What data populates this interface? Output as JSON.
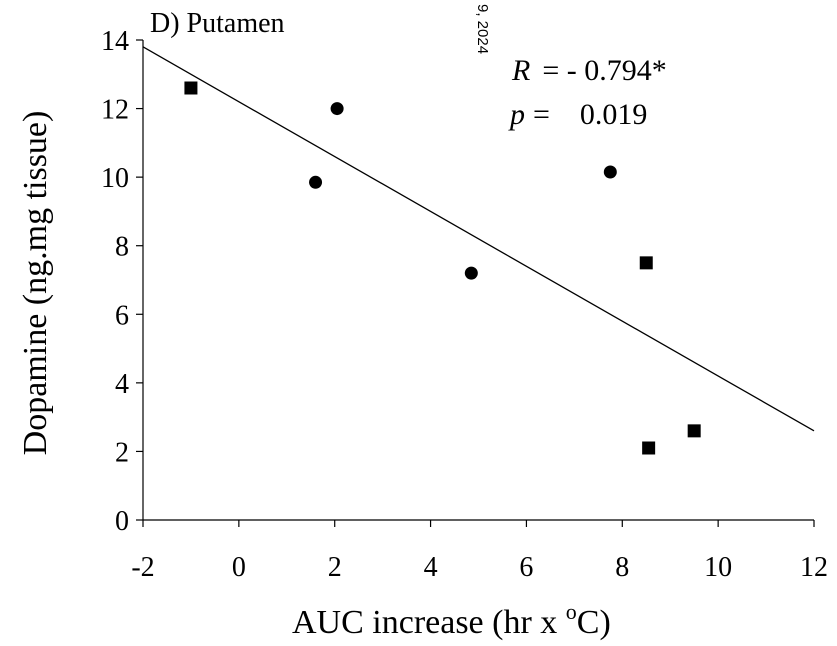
{
  "chart_data": {
    "type": "scatter",
    "title": "D) Putamen",
    "xlabel": "AUC increase (hr x ",
    "xlabel_sup": "o",
    "xlabel_end": "C)",
    "ylabel": "Dopamine (ng.mg tissue)",
    "xlim": [
      -2,
      12
    ],
    "ylim": [
      0,
      14
    ],
    "xticks": [
      -2,
      0,
      2,
      4,
      6,
      8,
      10,
      12
    ],
    "yticks": [
      0,
      2,
      4,
      6,
      8,
      10,
      12,
      14
    ],
    "series": [
      {
        "marker": "square",
        "x": [
          -1.0,
          8.5,
          8.55,
          9.5
        ],
        "y": [
          12.6,
          7.5,
          2.1,
          2.6
        ]
      },
      {
        "marker": "circle",
        "x": [
          1.6,
          2.05,
          4.85,
          7.75
        ],
        "y": [
          9.85,
          12.0,
          7.2,
          10.15
        ]
      }
    ],
    "regression_line": {
      "x": [
        -2,
        12
      ],
      "y": [
        13.8,
        2.6
      ]
    },
    "annotations": {
      "r_label": "R",
      "r_value": "= - 0.794*",
      "p_label": "p",
      "p_eq": "=",
      "p_value": "0.019",
      "watermark": "9, 2024"
    },
    "colors": {
      "marker": "#000000",
      "line": "#000000"
    }
  }
}
